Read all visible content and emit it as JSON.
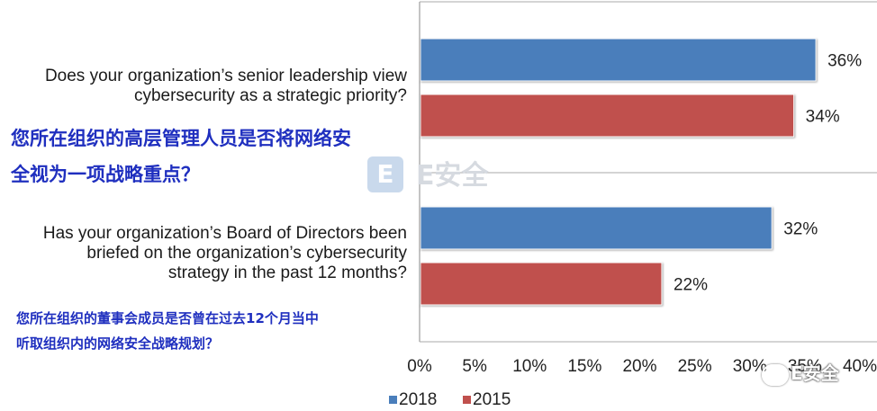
{
  "chart_data": {
    "type": "bar",
    "orientation": "horizontal",
    "categories": [
      "Does your organization’s senior leadership view cybersecurity as a strategic priority?",
      "Has your organization’s Board of Directors been briefed on the organization’s cybersecurity strategy in the past 12 months?"
    ],
    "category_lines": [
      [
        "Does your organization’s senior leadership view",
        "cybersecurity as a strategic priority?"
      ],
      [
        "Has your organization’s Board of Directors been",
        "briefed on the organization’s cybersecurity",
        "strategy in the past 12 months?"
      ]
    ],
    "category_translations": [
      [
        "您所在组织的高层管理人员是否将网络安",
        "全视为一项战略重点？"
      ],
      [
        "您所在组织的董事会成员是否曾在过去12个月当中",
        "听取组织内的网络安全战略规划？"
      ]
    ],
    "series": [
      {
        "name": "2018",
        "color": "#4a7ebb",
        "values": [
          36,
          32
        ],
        "labels": [
          "36%",
          "32%"
        ]
      },
      {
        "name": "2015",
        "color": "#c0504d",
        "values": [
          34,
          22
        ],
        "labels": [
          "34%",
          "22%"
        ]
      }
    ],
    "xlim": [
      0,
      40
    ],
    "xticks": [
      0,
      5,
      10,
      15,
      20,
      25,
      30,
      35,
      40
    ],
    "xtick_labels": [
      "0%",
      "5%",
      "10%",
      "15%",
      "20%",
      "25%",
      "30%",
      "35%",
      "40%"
    ],
    "legend_position": "bottom",
    "grid": false
  },
  "watermark": {
    "logo_letter": "E",
    "center_text": "E安全",
    "corner_text": "E安全"
  }
}
